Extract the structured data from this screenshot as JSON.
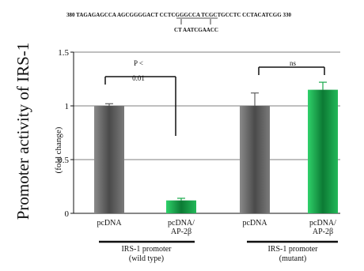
{
  "header": {
    "sequence_line": "380 TAGAGAGCCA AGCGGGGACT CCTCGGGCCA TCGCTGCCTC CCTACATCGG 330",
    "mutant_line": "CT AATCGAACC"
  },
  "chart_data": {
    "type": "bar",
    "ylabel": "Promoter activity of IRS-1",
    "ylabel_sub": "(fold change)",
    "ylim": [
      0,
      1.5
    ],
    "yticks": [
      0,
      0.5,
      1,
      1.5
    ],
    "grid": true,
    "categories": [
      "pcDNA",
      "pcDNA/\nAP-2β",
      "pcDNA",
      "pcDNA/\nAP-2β"
    ],
    "values": [
      1.0,
      0.12,
      1.0,
      1.15
    ],
    "errors": [
      0.02,
      0.02,
      0.12,
      0.07
    ],
    "colors": [
      "#606060",
      "#18a84a",
      "#606060",
      "#18a84a"
    ],
    "groups": [
      {
        "label": "IRS-1 promoter",
        "sublabel": "(wild type)"
      },
      {
        "label": "IRS-1 promoter",
        "sublabel": "(mutant)"
      }
    ],
    "annotations": [
      {
        "text": "P <",
        "subtext": "0.01"
      },
      {
        "text": "ns",
        "subtext": ""
      }
    ]
  }
}
